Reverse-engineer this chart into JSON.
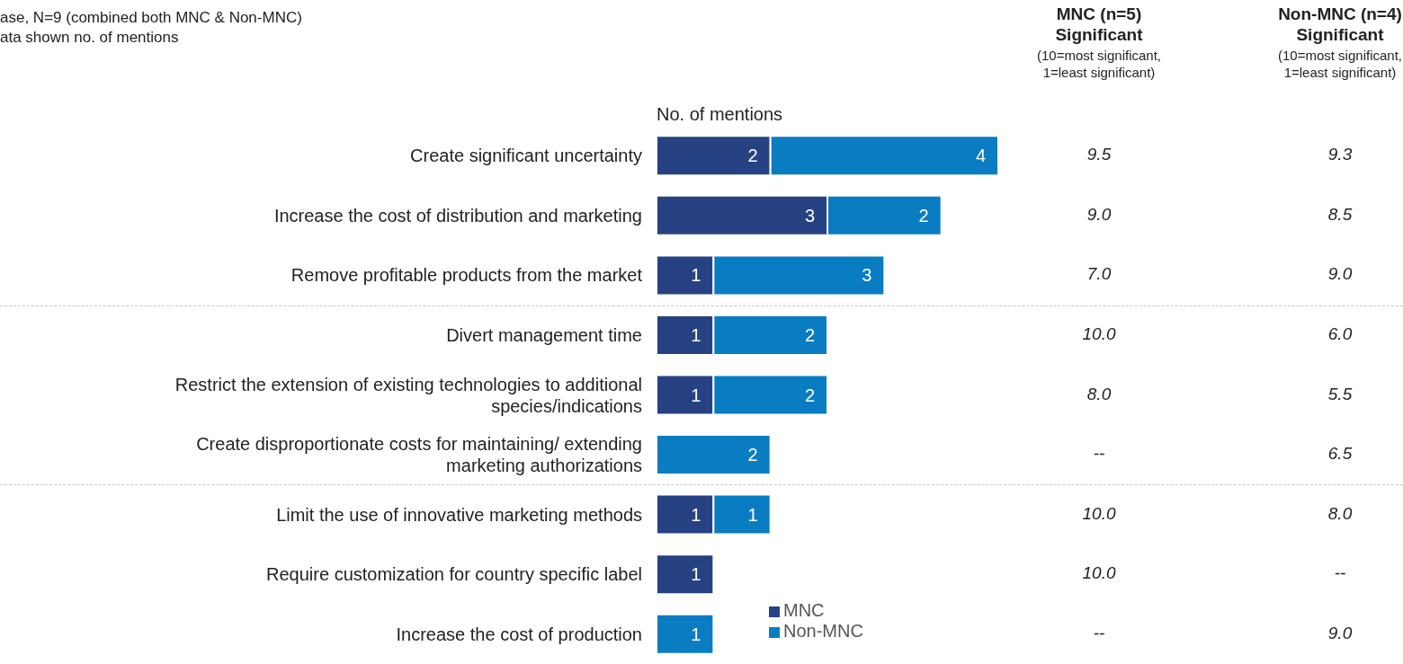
{
  "chart_data": {
    "type": "bar",
    "orientation": "horizontal",
    "stacked": true,
    "xlabel": "No. of mentions",
    "categories": [
      "Create significant uncertainty",
      "Increase the cost of distribution and marketing",
      "Remove profitable products from the market",
      "Divert management time",
      "Restrict the extension of existing technologies to additional species/indications",
      "Create disproportionate costs for maintaining/ extending marketing authorizations",
      "Limit the use of innovative marketing methods",
      "Require customization for country specific label",
      "Increase the cost of production"
    ],
    "series": [
      {
        "name": "MNC",
        "color": "#264282",
        "values": [
          2,
          3,
          1,
          1,
          1,
          null,
          1,
          1,
          null
        ]
      },
      {
        "name": "Non-MNC",
        "color": "#0a7cc1",
        "values": [
          4,
          2,
          3,
          2,
          2,
          2,
          1,
          null,
          1
        ]
      }
    ],
    "data_labels": true,
    "legend": "bottom",
    "grid": false,
    "annotations": [
      "ase, N=9 (combined both MNC & Non-MNC)",
      "ata shown no. of mentions",
      "MNC (n=5) Significant",
      "(10=most significant, 1=least significant)",
      "Non-MNC (n=4) Significant",
      "(10=most significant, 1=least significant)",
      "9.5",
      "9.3",
      "9.0",
      "8.5",
      "7.0",
      "9.0",
      "10.0",
      "6.0",
      "8.0",
      "5.5",
      "--",
      "6.5",
      "10.0",
      "8.0",
      "10.0",
      "--",
      "--",
      "9.0"
    ]
  }
}
